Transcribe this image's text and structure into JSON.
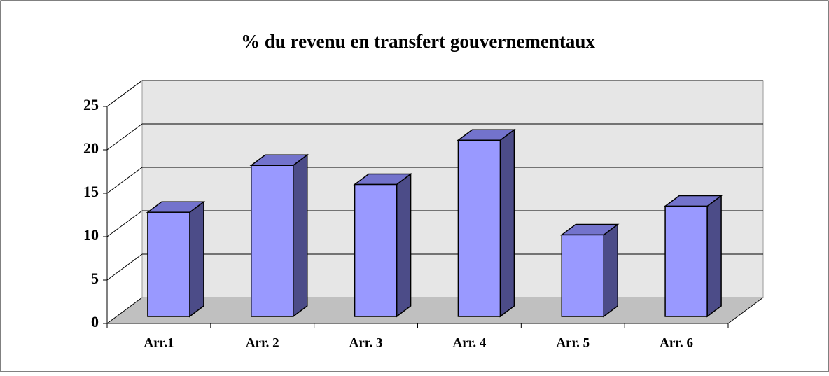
{
  "chart_data": {
    "type": "bar",
    "title": "% du revenu en transfert gouvernementaux",
    "categories": [
      "Arr.1",
      "Arr. 2",
      "Arr. 3",
      "Arr. 4",
      "Arr. 5",
      "Arr. 6"
    ],
    "values": [
      12,
      17.4,
      15.2,
      20.3,
      9.4,
      12.7
    ],
    "color": "#9999ff",
    "ylim": [
      0,
      25
    ],
    "yticks": [
      0,
      5,
      10,
      15,
      20,
      25
    ],
    "grid": true
  }
}
